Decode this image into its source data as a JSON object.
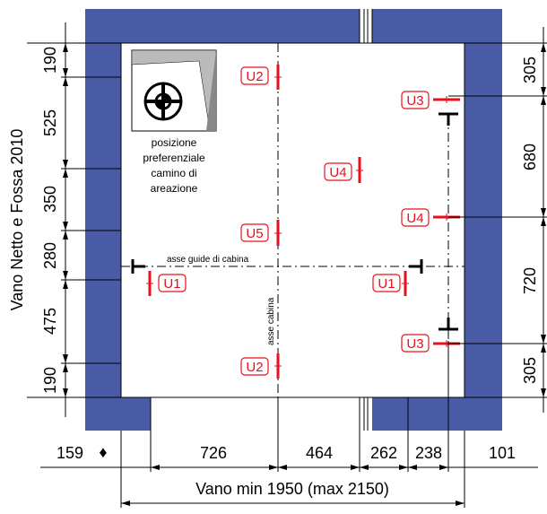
{
  "title_vertical": "Vano Netto e Fossa 2010",
  "title_bottom": "Vano min 1950 (max 2150)",
  "left_dims": [
    "190",
    "525",
    "350",
    "280",
    "475",
    "190"
  ],
  "right_dims": [
    "305",
    "680",
    "720",
    "305"
  ],
  "bottom_dims": [
    "159",
    "726",
    "464",
    "262",
    "238",
    "101"
  ],
  "bottom_marker": "♦",
  "axis_guides": "asse guide di cabina",
  "axis_cabin": "asse cabina",
  "chimney_note": [
    "posizione",
    "preferenziale",
    "camino di",
    "areazione"
  ],
  "markers": [
    "U2",
    "U3",
    "U4",
    "U4",
    "U5",
    "U1",
    "U1",
    "U3",
    "U2"
  ],
  "colors": {
    "wall": "#4a5ba6",
    "marker": "#e8101a"
  },
  "icon": "fan-vent-icon"
}
